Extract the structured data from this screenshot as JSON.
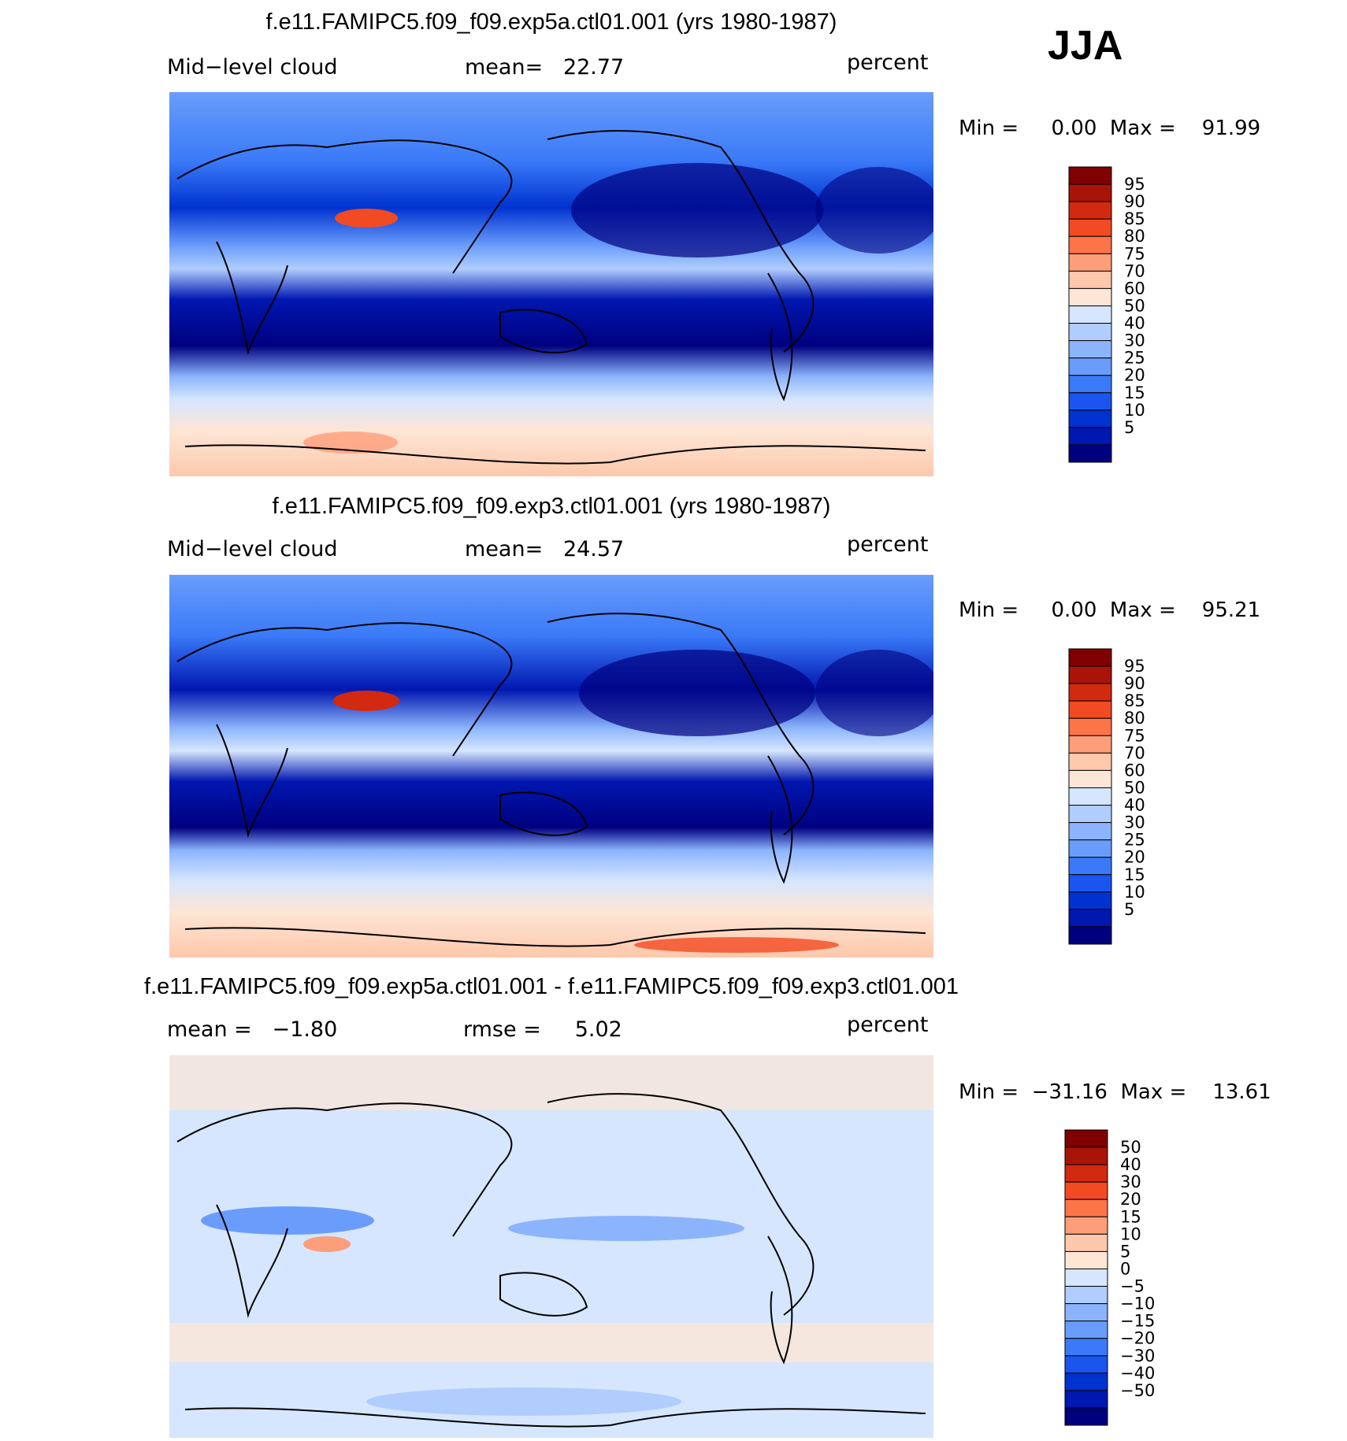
{
  "season": "JJA",
  "colors": {
    "blue_scale": [
      "#00007f",
      "#0017b0",
      "#0032d0",
      "#1a55f0",
      "#3a7af8",
      "#6a9dfb",
      "#8cb4fc",
      "#b0cdfd",
      "#d6e6fe",
      "#fde6d6",
      "#fdc8ab",
      "#fc9e7a",
      "#fc7548",
      "#f24a22",
      "#d22a10",
      "#a81408",
      "#7f0000"
    ],
    "grid_line": "#000000"
  },
  "panels": [
    {
      "title": "f.e11.FAMIPC5.f09_f09.exp5a.ctl01.001 (yrs 1980-1987)",
      "left_label": "Mid−level cloud",
      "center_label": "mean=   22.77",
      "right_label": "percent",
      "stats": "Min =     0.00  Max =    91.99",
      "colorbar_labels": [
        "95",
        "90",
        "85",
        "80",
        "75",
        "70",
        "60",
        "50",
        "40",
        "30",
        "25",
        "20",
        "15",
        "10",
        "5"
      ]
    },
    {
      "title": "f.e11.FAMIPC5.f09_f09.exp3.ctl01.001 (yrs 1980-1987)",
      "left_label": "Mid−level cloud",
      "center_label": "mean=   24.57",
      "right_label": "percent",
      "stats": "Min =     0.00  Max =    95.21",
      "colorbar_labels": [
        "95",
        "90",
        "85",
        "80",
        "75",
        "70",
        "60",
        "50",
        "40",
        "30",
        "25",
        "20",
        "15",
        "10",
        "5"
      ]
    },
    {
      "title": "f.e11.FAMIPC5.f09_f09.exp5a.ctl01.001 - f.e11.FAMIPC5.f09_f09.exp3.ctl01.001",
      "left_label": "mean =   −1.80",
      "center_label": "rmse =     5.02",
      "right_label": "percent",
      "stats": "Min =  −31.16  Max =    13.61",
      "colorbar_labels": [
        "50",
        "40",
        "30",
        "20",
        "15",
        "10",
        "5",
        "0",
        "−5",
        "−10",
        "−15",
        "−20",
        "−30",
        "−40",
        "−50"
      ]
    }
  ],
  "chart_data": [
    {
      "type": "heatmap",
      "title": "f.e11.FAMIPC5.f09_f09.exp5a.ctl01.001 (yrs 1980-1987)",
      "variable": "Mid-level cloud",
      "units": "percent",
      "mean": 22.77,
      "min": 0.0,
      "max": 91.99,
      "contour_levels": [
        5,
        10,
        15,
        20,
        25,
        30,
        40,
        50,
        60,
        70,
        75,
        80,
        85,
        90,
        95
      ]
    },
    {
      "type": "heatmap",
      "title": "f.e11.FAMIPC5.f09_f09.exp3.ctl01.001 (yrs 1980-1987)",
      "variable": "Mid-level cloud",
      "units": "percent",
      "mean": 24.57,
      "min": 0.0,
      "max": 95.21,
      "contour_levels": [
        5,
        10,
        15,
        20,
        25,
        30,
        40,
        50,
        60,
        70,
        75,
        80,
        85,
        90,
        95
      ]
    },
    {
      "type": "heatmap",
      "title": "f.e11.FAMIPC5.f09_f09.exp5a.ctl01.001 - f.e11.FAMIPC5.f09_f09.exp3.ctl01.001",
      "units": "percent",
      "mean": -1.8,
      "rmse": 5.02,
      "min": -31.16,
      "max": 13.61,
      "contour_levels": [
        -50,
        -40,
        -30,
        -20,
        -15,
        -10,
        -5,
        0,
        5,
        10,
        15,
        20,
        30,
        40,
        50
      ]
    }
  ]
}
